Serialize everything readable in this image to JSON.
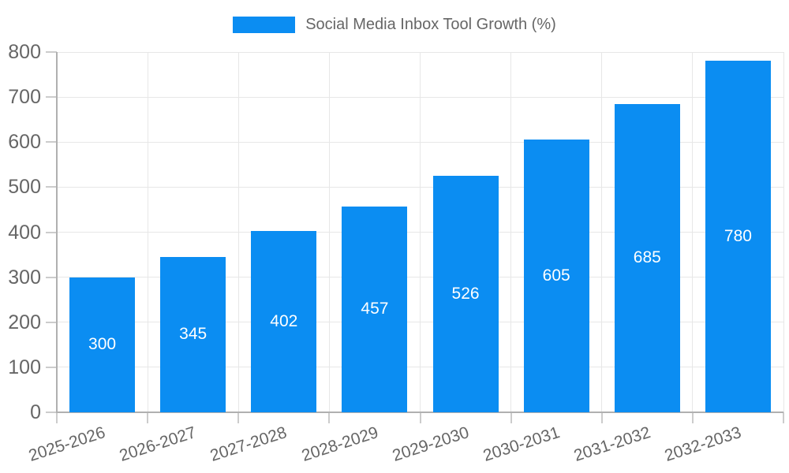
{
  "chart_data": {
    "type": "bar",
    "title": "Social Media Inbox Tool Growth (%)",
    "categories": [
      "2025-2026",
      "2026-2027",
      "2027-2028",
      "2028-2029",
      "2029-2030",
      "2030-2031",
      "2031-2032",
      "2032-2033"
    ],
    "values": [
      300,
      345,
      402,
      457,
      526,
      605,
      685,
      780
    ],
    "series": [
      {
        "name": "Social Media Inbox Tool Growth (%)",
        "values": [
          300,
          345,
          402,
          457,
          526,
          605,
          685,
          780
        ]
      }
    ],
    "xlabel": "",
    "ylabel": "",
    "ylim": [
      0,
      800
    ],
    "ytick_step": 100,
    "ytick_labels": [
      "0",
      "100",
      "200",
      "300",
      "400",
      "500",
      "600",
      "700",
      "800"
    ],
    "grid": "on",
    "legend_position": "top-center",
    "bar_labels_inside": true
  },
  "legend": {
    "label": "Social Media Inbox Tool Growth (%)"
  },
  "colors": {
    "bar": "#0b8df2",
    "bar_value_text": "#ffffff",
    "axis_text": "#666666",
    "grid": "#e7e7e7",
    "axis_line": "#b0b0b0",
    "tick": "#cccccc",
    "background": "#ffffff"
  }
}
